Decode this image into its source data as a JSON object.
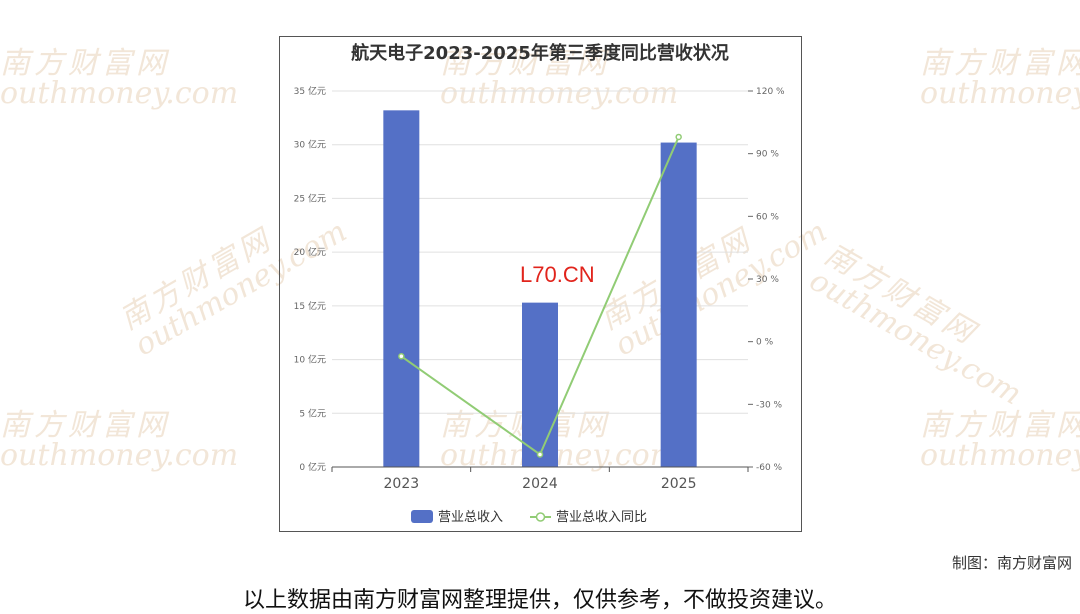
{
  "watermark": {
    "cn": "南方财富网",
    "en": "outhmoney.com",
    "center_text": "L70.CN"
  },
  "credit": "制图：南方财富网",
  "disclaimer": "以上数据由南方财富网整理提供，仅供参考，不做投资建议。",
  "colors": {
    "bar": "#5470c6",
    "line": "#91cc75",
    "axis": "#666666",
    "grid": "#e0e0e0"
  },
  "chart_data": {
    "type": "bar",
    "title": "航天电子2023-2025年第三季度同比营收状况",
    "categories": [
      "2023",
      "2024",
      "2025"
    ],
    "series": [
      {
        "name": "营业总收入",
        "type": "bar",
        "axis": "left",
        "values": [
          33.2,
          15.3,
          30.2
        ]
      },
      {
        "name": "营业总收入同比",
        "type": "line",
        "axis": "right",
        "values": [
          -7,
          -54,
          98
        ]
      }
    ],
    "y_left": {
      "min": 0,
      "max": 35,
      "step": 5,
      "unit": "亿元",
      "ticks": [
        "0 亿元",
        "5 亿元",
        "10 亿元",
        "15 亿元",
        "20 亿元",
        "25 亿元",
        "30 亿元",
        "35 亿元"
      ]
    },
    "y_right": {
      "min": -60,
      "max": 120,
      "step": 30,
      "unit": "%",
      "ticks": [
        "-60 %",
        "-30 %",
        "0 %",
        "30 %",
        "60 %",
        "90 %",
        "120 %"
      ]
    },
    "grid": true,
    "legend_position": "bottom"
  }
}
